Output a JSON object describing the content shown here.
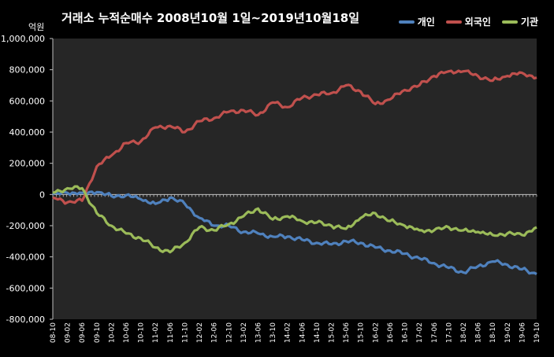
{
  "chart_data": {
    "type": "line",
    "title": "거래소 누적순매수 2008년10월 1일~2019년10월18일",
    "ylabel": "억원",
    "ylim": [
      -800000,
      1000000
    ],
    "yticks": [
      "1,000,000",
      "800,000",
      "600,000",
      "400,000",
      "200,000",
      "0",
      "-200,000",
      "-400,000",
      "-600,000",
      "-800,000"
    ],
    "ytick_values": [
      1000000,
      800000,
      600000,
      400000,
      200000,
      0,
      -200000,
      -400000,
      -600000,
      -800000
    ],
    "x": [
      "08-10",
      "09-02",
      "09-06",
      "09-10",
      "10-02",
      "10-06",
      "10-10",
      "11-02",
      "11-06",
      "11-10",
      "12-02",
      "12-06",
      "12-10",
      "13-02",
      "13-06",
      "13-10",
      "14-02",
      "14-06",
      "14-10",
      "15-02",
      "15-06",
      "15-10",
      "16-02",
      "16-06",
      "16-10",
      "17-02",
      "17-06",
      "17-10",
      "18-02",
      "18-06",
      "18-10",
      "19-02",
      "19-06",
      "19-10"
    ],
    "grid": false,
    "legend_position": "top-right",
    "series": [
      {
        "name": "개인",
        "color": "#4f81bd",
        "values": [
          0,
          10000,
          10000,
          15000,
          -10000,
          -5000,
          -30000,
          -60000,
          -20000,
          -60000,
          -150000,
          -200000,
          -200000,
          -240000,
          -250000,
          -270000,
          -270000,
          -290000,
          -310000,
          -320000,
          -300000,
          -310000,
          -340000,
          -360000,
          -380000,
          -410000,
          -440000,
          -470000,
          -500000,
          -460000,
          -430000,
          -450000,
          -480000,
          -510000
        ]
      },
      {
        "name": "외국인",
        "color": "#c0504d",
        "values": [
          -20000,
          -50000,
          -40000,
          180000,
          250000,
          330000,
          340000,
          430000,
          440000,
          400000,
          470000,
          490000,
          530000,
          540000,
          510000,
          590000,
          560000,
          620000,
          640000,
          650000,
          700000,
          660000,
          580000,
          610000,
          670000,
          700000,
          760000,
          790000,
          790000,
          760000,
          730000,
          760000,
          780000,
          750000
        ]
      },
      {
        "name": "기관",
        "color": "#9bbb59",
        "values": [
          10000,
          40000,
          40000,
          -120000,
          -200000,
          -250000,
          -280000,
          -340000,
          -370000,
          -310000,
          -210000,
          -230000,
          -190000,
          -140000,
          -90000,
          -160000,
          -140000,
          -170000,
          -180000,
          -200000,
          -220000,
          -150000,
          -120000,
          -170000,
          -200000,
          -230000,
          -230000,
          -210000,
          -230000,
          -240000,
          -260000,
          -250000,
          -260000,
          -210000
        ]
      }
    ]
  }
}
